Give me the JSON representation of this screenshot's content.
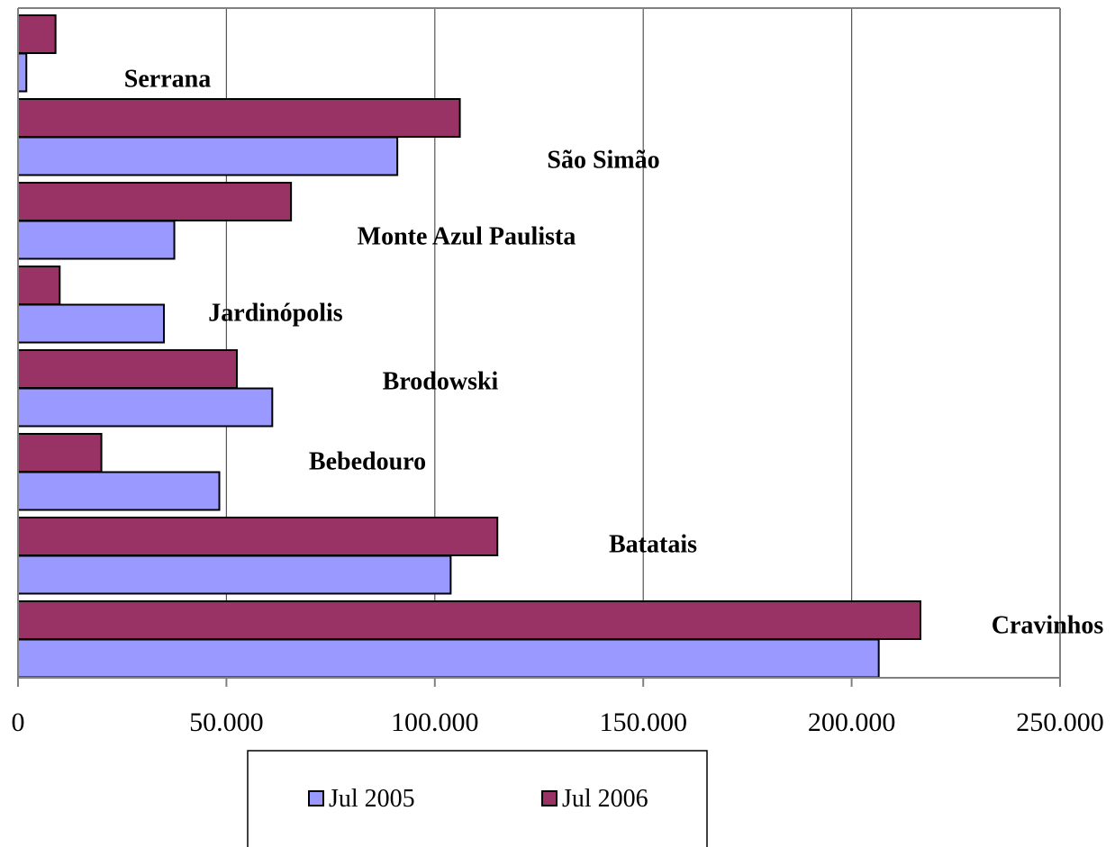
{
  "chart_data": {
    "type": "bar",
    "orientation": "horizontal",
    "categories": [
      "Cravinhos",
      "Batatais",
      "Bebedouro",
      "Brodowski",
      "Jardinópolis",
      "Monte Azul Paulista",
      "São Simão",
      "Serrana"
    ],
    "series": [
      {
        "name": "Jul 2005",
        "color": "#9999ff",
        "values": [
          206500,
          103800,
          48300,
          61000,
          35000,
          37500,
          91000,
          2000
        ]
      },
      {
        "name": "Jul 2006",
        "color": "#993366",
        "values": [
          216500,
          115000,
          20000,
          52500,
          10000,
          65500,
          106000,
          9000
        ]
      }
    ],
    "xlim": [
      0,
      250000
    ],
    "xticks": [
      0,
      50000,
      100000,
      150000,
      200000,
      250000
    ],
    "xtick_labels": [
      "0",
      "50.000",
      "100.000",
      "150.000",
      "200.000",
      "250.000"
    ],
    "grid": "vertical",
    "legend": "bottom"
  }
}
